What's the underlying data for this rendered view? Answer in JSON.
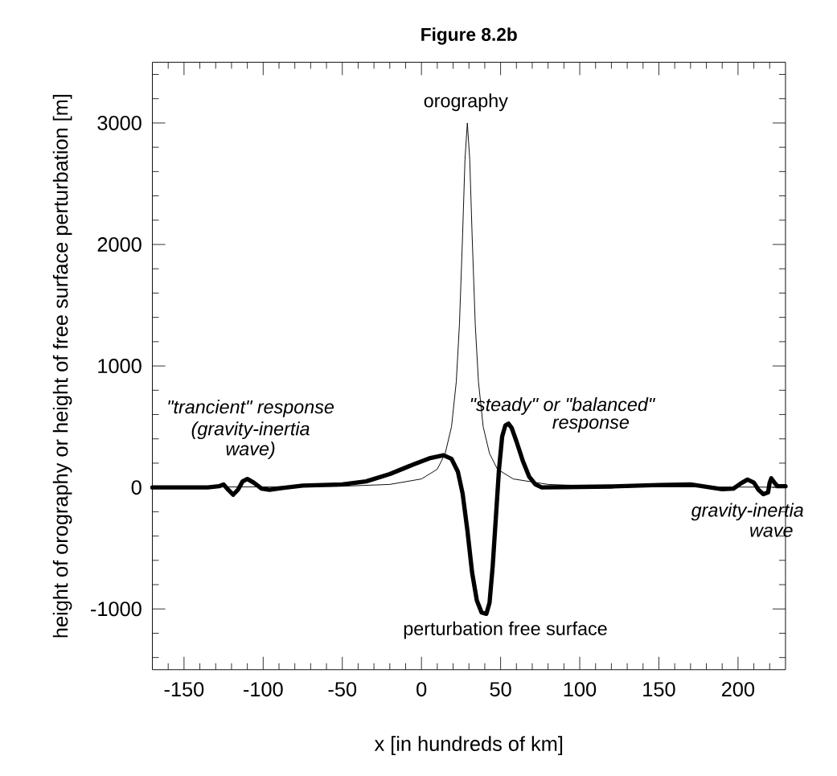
{
  "chart_data": {
    "type": "line",
    "title": "Figure 8.2b",
    "xlabel": "x [in hundreds of km]",
    "ylabel": "height of orography or height of free surface perturbation [m]",
    "xlim": [
      -170,
      230
    ],
    "ylim": [
      -1500,
      3500
    ],
    "xticks": [
      -150,
      -100,
      -50,
      0,
      50,
      100,
      150,
      200,
      {
        "value": -160,
        "label": null
      },
      {
        "value": -140,
        "label": null
      },
      {
        "value": -130,
        "label": null
      },
      {
        "value": -120,
        "label": null
      },
      {
        "value": -110,
        "label": null
      },
      {
        "value": -90,
        "label": null
      },
      {
        "value": -80,
        "label": null
      },
      {
        "value": -70,
        "label": null
      },
      {
        "value": -60,
        "label": null
      },
      {
        "value": -40,
        "label": null
      },
      {
        "value": -30,
        "label": null
      },
      {
        "value": -20,
        "label": null
      },
      {
        "value": -10,
        "label": null
      },
      {
        "value": 10,
        "label": null
      },
      {
        "value": 20,
        "label": null
      },
      {
        "value": 30,
        "label": null
      },
      {
        "value": 40,
        "label": null
      },
      {
        "value": 60,
        "label": null
      },
      {
        "value": 70,
        "label": null
      },
      {
        "value": 80,
        "label": null
      },
      {
        "value": 90,
        "label": null
      },
      {
        "value": 110,
        "label": null
      },
      {
        "value": 120,
        "label": null
      },
      {
        "value": 130,
        "label": null
      },
      {
        "value": 140,
        "label": null
      },
      {
        "value": 160,
        "label": null
      },
      {
        "value": 170,
        "label": null
      },
      {
        "value": 180,
        "label": null
      },
      {
        "value": 190,
        "label": null
      },
      {
        "value": 210,
        "label": null
      },
      {
        "value": 220,
        "label": null
      }
    ],
    "yticks": [
      -1000,
      0,
      1000,
      2000,
      3000,
      {
        "value": -1400,
        "label": null
      },
      {
        "value": -1200,
        "label": null
      },
      {
        "value": -800,
        "label": null
      },
      {
        "value": -600,
        "label": null
      },
      {
        "value": -400,
        "label": null
      },
      {
        "value": -200,
        "label": null
      },
      {
        "value": 200,
        "label": null
      },
      {
        "value": 400,
        "label": null
      },
      {
        "value": 600,
        "label": null
      },
      {
        "value": 800,
        "label": null
      },
      {
        "value": 1200,
        "label": null
      },
      {
        "value": 1400,
        "label": null
      },
      {
        "value": 1600,
        "label": null
      },
      {
        "value": 1800,
        "label": null
      },
      {
        "value": 2200,
        "label": null
      },
      {
        "value": 2400,
        "label": null
      },
      {
        "value": 2600,
        "label": null
      },
      {
        "value": 2800,
        "label": null
      },
      {
        "value": 3200,
        "label": null
      },
      {
        "value": 3400,
        "label": null
      }
    ],
    "series": [
      {
        "color": "#000000",
        "x": [
          -170,
          -100,
          -50,
          -20,
          0,
          10,
          15,
          19,
          22,
          24,
          26,
          27.5,
          29,
          30.5,
          32,
          34,
          36,
          39,
          43,
          48,
          58,
          80,
          110,
          160,
          230
        ],
        "values": [
          2,
          5,
          10,
          25,
          70,
          150,
          280,
          500,
          870,
          1340,
          2080,
          2700,
          3000,
          2700,
          2080,
          1340,
          870,
          500,
          280,
          150,
          70,
          25,
          10,
          5,
          2
        ]
      },
      {
        "color": "#000000",
        "x": [
          -170,
          -135,
          -128,
          -125,
          -122,
          -119,
          -116,
          -113,
          -110,
          -106,
          -101,
          -96,
          -88,
          -75,
          -50,
          -35,
          -20,
          -5,
          5,
          14,
          19,
          23,
          26,
          29,
          32,
          35,
          38,
          41,
          43,
          45,
          47,
          49,
          51,
          53,
          55,
          57,
          60,
          64,
          68,
          72,
          76,
          90,
          120,
          150,
          170,
          180,
          190,
          197,
          202,
          206,
          210,
          213,
          216,
          219,
          220,
          221,
          223,
          225,
          230
        ],
        "values": [
          0,
          0,
          10,
          25,
          -20,
          -60,
          -20,
          50,
          70,
          40,
          -10,
          -20,
          -5,
          15,
          25,
          50,
          110,
          190,
          240,
          265,
          235,
          130,
          -50,
          -350,
          -700,
          -930,
          -1030,
          -1040,
          -950,
          -650,
          -250,
          150,
          420,
          510,
          525,
          490,
          380,
          220,
          90,
          25,
          0,
          3,
          8,
          20,
          25,
          5,
          -15,
          -10,
          35,
          65,
          40,
          -20,
          -55,
          -40,
          40,
          75,
          40,
          10,
          10
        ]
      }
    ],
    "annotations": [
      "orography",
      "perturbation free surface",
      "*\"trancient\" response*",
      "*(gravity-inertia*",
      "*wave)*",
      "*\"steady\"  or \"balanced\"*",
      "*response*",
      "*gravity-inertia*",
      "*wave*"
    ],
    "grid": false,
    "marker": "none",
    "line_style": "solid"
  }
}
